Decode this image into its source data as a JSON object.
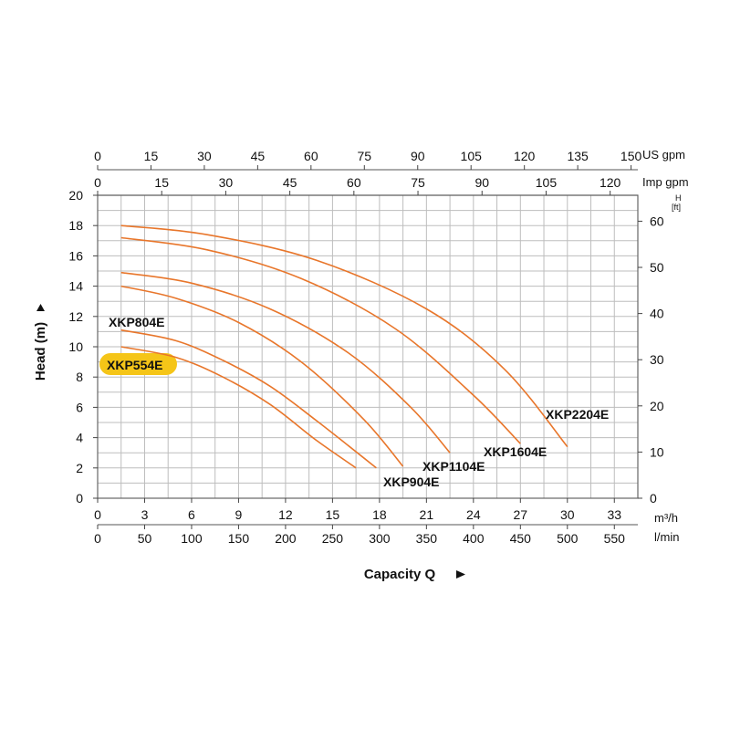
{
  "chart_data": {
    "type": "line",
    "title": "",
    "ylabel": "Head (m)",
    "xlabel": "Capacity Q",
    "ylim": [
      0,
      20
    ],
    "xlim_m3h": [
      0,
      34.5
    ],
    "grid": true,
    "curve_color": "#e8762b",
    "highlight_color": "#f5c518",
    "highlight_series": "XKP554E",
    "axes": {
      "x_m3h": {
        "unit": "m³/h",
        "ticks": [
          0,
          3,
          6,
          9,
          12,
          15,
          18,
          21,
          24,
          27,
          30,
          33
        ]
      },
      "x_lmin": {
        "unit": "l/min",
        "ticks": [
          0,
          50,
          100,
          150,
          200,
          250,
          300,
          350,
          400,
          450,
          500,
          550
        ]
      },
      "x_usgpm": {
        "unit": "US gpm",
        "ticks": [
          0,
          15,
          30,
          45,
          60,
          75,
          90,
          105,
          120,
          135,
          150
        ]
      },
      "x_impgpm": {
        "unit": "Imp gpm",
        "ticks": [
          0,
          15,
          30,
          45,
          60,
          75,
          90,
          105,
          120
        ]
      },
      "y_m": {
        "unit": "Head (m)",
        "ticks": [
          0,
          2,
          4,
          6,
          8,
          10,
          12,
          14,
          16,
          18,
          20
        ]
      },
      "y_ft": {
        "unit": "H",
        "unit_sub": "[ft]",
        "ticks": [
          0,
          10,
          20,
          30,
          40,
          50,
          60
        ]
      }
    },
    "series": [
      {
        "name": "XKP554E",
        "x": [
          1.5,
          5,
          8,
          11,
          14,
          16.5
        ],
        "y": [
          10,
          9.3,
          8.0,
          6.2,
          3.8,
          2.0
        ]
      },
      {
        "name": "XKP804E",
        "x": [
          1.5,
          5,
          8,
          11,
          14,
          17.8
        ],
        "y": [
          11.1,
          10.4,
          9.1,
          7.4,
          5.1,
          2.0
        ]
      },
      {
        "name": "XKP904E",
        "x": [
          1.5,
          5,
          9,
          13,
          17,
          19.5
        ],
        "y": [
          14.0,
          13.2,
          11.6,
          9.0,
          5.2,
          2.1
        ]
      },
      {
        "name": "XKP1104E",
        "x": [
          1.5,
          6,
          11,
          16,
          20,
          22.5
        ],
        "y": [
          14.9,
          14.2,
          12.5,
          9.6,
          6.0,
          3.0
        ]
      },
      {
        "name": "XKP1604E",
        "x": [
          1.5,
          7,
          13,
          19,
          24,
          27
        ],
        "y": [
          17.2,
          16.4,
          14.5,
          11.2,
          6.8,
          3.6
        ]
      },
      {
        "name": "XKP2204E",
        "x": [
          1.5,
          7,
          14,
          21,
          26,
          30
        ],
        "y": [
          18.0,
          17.4,
          15.7,
          12.5,
          8.5,
          3.4
        ]
      }
    ]
  }
}
